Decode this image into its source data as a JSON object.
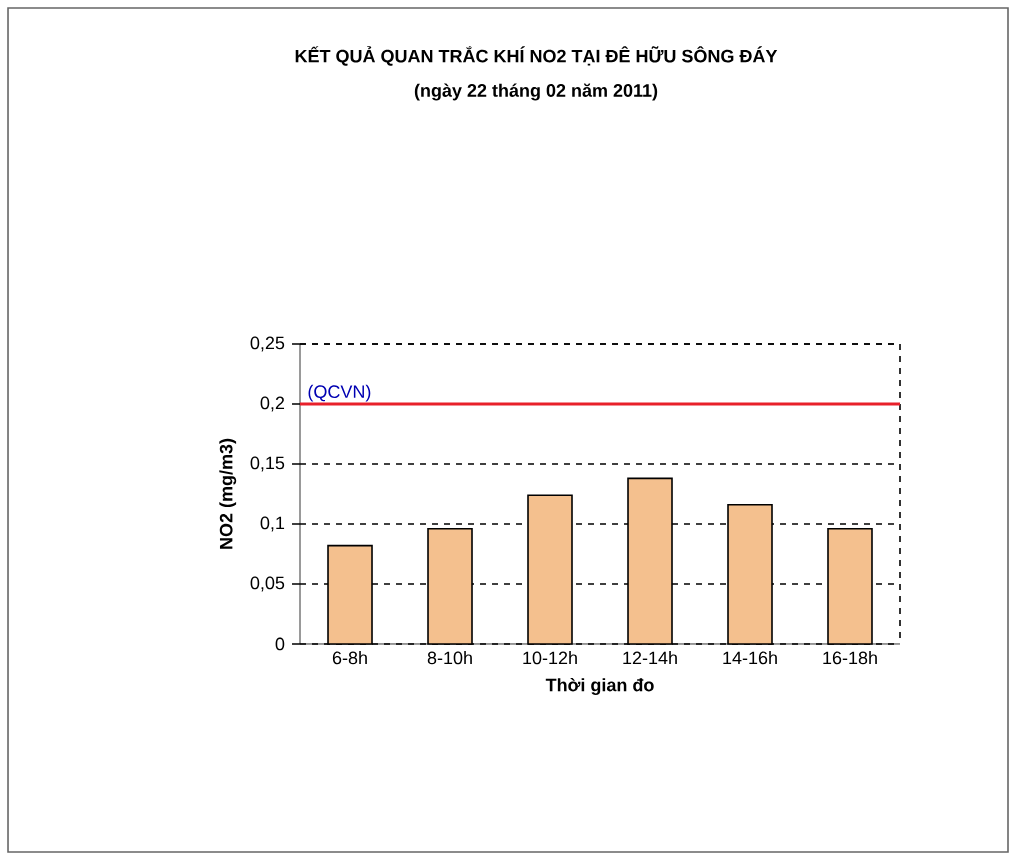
{
  "chart_data": {
    "type": "bar",
    "title": "KẾT QUẢ QUAN TRẮC KHÍ NO2 TẠI ĐÊ HỮU SÔNG ĐÁY",
    "subtitle": "(ngày 22 tháng 02 năm 2011)",
    "xlabel": "Thời gian đo",
    "ylabel": "NO2 (mg/m3)",
    "categories": [
      "6-8h",
      "8-10h",
      "10-12h",
      "12-14h",
      "14-16h",
      "16-18h"
    ],
    "values": [
      0.082,
      0.096,
      0.124,
      0.138,
      0.116,
      0.096
    ],
    "color": "#f4c08e",
    "ylim": [
      0,
      0.25
    ],
    "yticks": [
      {
        "value": 0,
        "label": "0"
      },
      {
        "value": 0.05,
        "label": "0,05"
      },
      {
        "value": 0.1,
        "label": "0,1"
      },
      {
        "value": 0.15,
        "label": "0,15"
      },
      {
        "value": 0.2,
        "label": "0,2"
      },
      {
        "value": 0.25,
        "label": "0,25"
      }
    ],
    "ref_lines": [
      {
        "axis": "y",
        "value": 0.2,
        "label": "(QCVN)",
        "color": "#e8202a"
      }
    ],
    "grid": "y"
  }
}
